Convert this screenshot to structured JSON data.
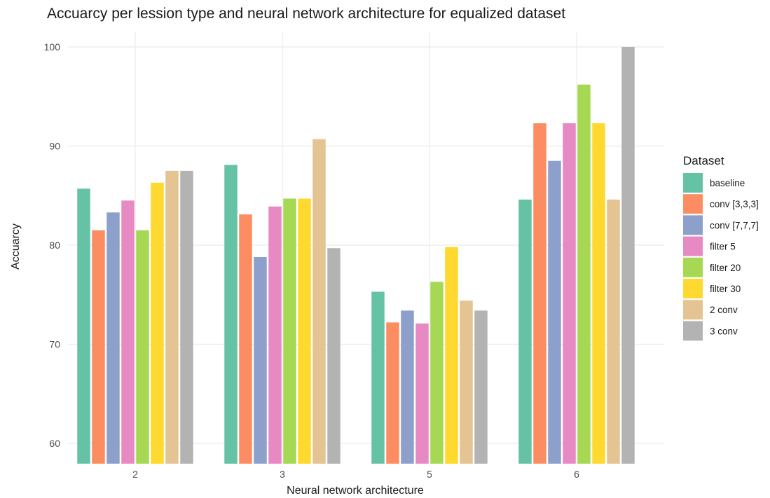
{
  "chart_data": {
    "type": "bar",
    "title": "Accuarcy per lession type and neural network architecture for equalized dataset",
    "xlabel": "Neural network architecture",
    "ylabel": "Accuarcy",
    "categories": [
      "2",
      "3",
      "5",
      "6"
    ],
    "ylim": [
      58,
      102
    ],
    "yticks": [
      60,
      70,
      80,
      90,
      100
    ],
    "grid": true,
    "legend_title": "Dataset",
    "legend_position": "right",
    "series": [
      {
        "name": "baseline",
        "color": "#66c2a5",
        "values": [
          85.7,
          88.1,
          75.3,
          84.6
        ]
      },
      {
        "name": "conv [3,3,3]",
        "color": "#fc8d62",
        "values": [
          81.5,
          83.1,
          72.2,
          92.3
        ]
      },
      {
        "name": "conv [7,7,7]",
        "color": "#8da0cb",
        "values": [
          83.3,
          78.8,
          73.4,
          88.5
        ]
      },
      {
        "name": "filter 5",
        "color": "#e78ac3",
        "values": [
          84.5,
          83.9,
          72.1,
          92.3
        ]
      },
      {
        "name": "filter 20",
        "color": "#a6d854",
        "values": [
          81.5,
          84.7,
          76.3,
          96.2
        ]
      },
      {
        "name": "filter 30",
        "color": "#ffd92f",
        "values": [
          86.3,
          84.7,
          79.8,
          92.3
        ]
      },
      {
        "name": "2 conv",
        "color": "#e5c494",
        "values": [
          87.5,
          90.7,
          74.4,
          84.6
        ]
      },
      {
        "name": "3 conv",
        "color": "#b3b3b3",
        "values": [
          87.5,
          79.7,
          73.4,
          100.0
        ]
      }
    ]
  }
}
